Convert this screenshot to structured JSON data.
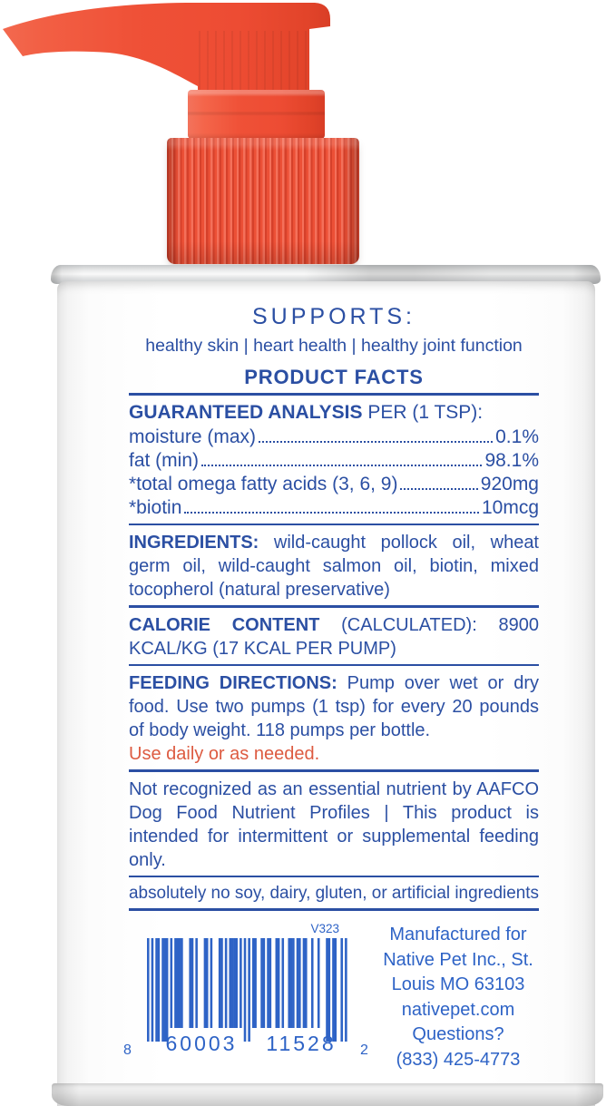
{
  "product": {
    "supports_heading": "SUPPORTS:",
    "supports_items": "healthy skin | heart health | healthy joint function",
    "facts_title": "PRODUCT FACTS",
    "guaranteed_analysis": {
      "label": "GUARANTEED ANALYSIS",
      "suffix": "PER (1 TSP):",
      "rows": [
        {
          "name": "moisture (max)",
          "value": "0.1%"
        },
        {
          "name": "fat (min)",
          "value": "98.1%"
        },
        {
          "name": "*total omega fatty acids (3, 6, 9)",
          "value": "920mg"
        },
        {
          "name": "*biotin",
          "value": "10mcg"
        }
      ]
    },
    "ingredients": {
      "label": "INGREDIENTS:",
      "text": "wild-caught pollock oil, wheat germ oil, wild-caught salmon oil, biotin, mixed tocopherol (natural preservative)"
    },
    "calories": {
      "label": "CALORIE CONTENT",
      "text": "(CALCULATED): 8900 KCAL/KG (17 KCAL PER PUMP)"
    },
    "feeding": {
      "label": "FEEDING DIRECTIONS:",
      "text": "Pump over wet or dry food. Use two pumps (1 tsp) for every 20 pounds of body weight. 118 pumps per bottle.",
      "highlight": "Use daily or as needed."
    },
    "disclaimer": "Not recognized as an essential nutrient by AAFCO Dog Food Nutrient Profiles | This product is intended for intermittent or supplemental feeding only.",
    "free_from": "absolutely no soy, dairy, gluten, or artificial ingredients",
    "barcode": {
      "upc_digits": "860003115282",
      "lead_digit": "8",
      "left_group": "60003",
      "right_group": "11528",
      "check_digit": "2",
      "version": "V323"
    },
    "manufacturer_lines": [
      "Manufactured for",
      "Native Pet Inc., St.",
      "Louis MO 63103",
      "nativepet.com",
      "Questions?",
      "(833) 425-4773"
    ],
    "colors": {
      "label_blue": "#2b4fa3",
      "barcode_blue": "#2e63c6",
      "alert_orange": "#dd5b41",
      "pump_orange": "#ee4f35"
    }
  }
}
